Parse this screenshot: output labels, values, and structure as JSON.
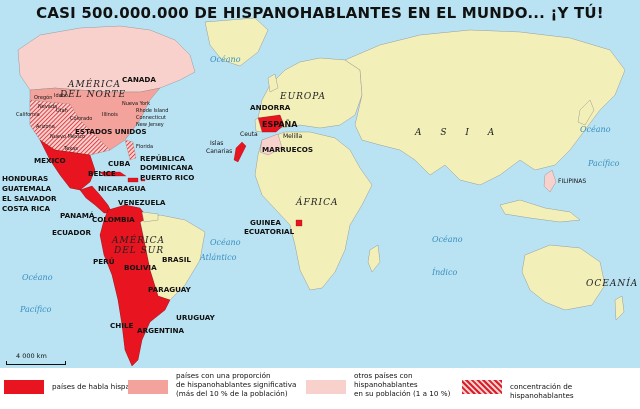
{
  "title": "CASI 500.000.000 DE HISPANOHABLANTES EN EL MUNDO... ¡Y TÚ!",
  "colors": {
    "ocean": "#b9e3f3",
    "land": "#f2efb9",
    "spanish": "#e8141f",
    "significant": "#f3a39b",
    "other": "#f8d1cc",
    "concentration": "#d91d2a"
  },
  "continents": {
    "north_america": "AMÉRICA DEL NORTE",
    "south_america": "AMÉRICA DEL SUR",
    "europe": "EUROPA",
    "africa": "ÁFRICA",
    "asia": "A S I A",
    "oceania": "OCEANÍA"
  },
  "oceans": {
    "atlantic": "Atlántico",
    "indian": "Índico",
    "pacific_right": "Pacífico",
    "ocean_word": "Océano",
    "pacific_left": "Pacífico"
  },
  "countries": {
    "canada": "CANADA",
    "usa": "ESTADOS UNIDOS",
    "mexico": "MEXICO",
    "cuba": "CUBA",
    "belice": "BELICE",
    "rep_dom": "REPÚBLICA\nDOMINICANA",
    "puerto_rico": "PUERTO RICO",
    "honduras": "HONDURAS",
    "guatemala": "GUATEMALA",
    "salvador": "EL SALVADOR",
    "costa_rica": "COSTA RICA",
    "nicaragua": "NICARAGUA",
    "panama": "PANAMÁ",
    "venezuela": "VENEZUELA",
    "colombia": "COLOMBIA",
    "ecuador": "ECUADOR",
    "peru": "PERÚ",
    "bolivia": "BOLIVIA",
    "brasil": "BRASIL",
    "paraguay": "PARAGUAY",
    "uruguay": "URUGUAY",
    "chile": "CHILE",
    "argentina": "ARGENTINA",
    "espana": "ESPAÑA",
    "andorra": "ANDORRA",
    "ceuta": "Ceuta",
    "melilla": "Melilla",
    "marruecos": "MARRUECOS",
    "canarias": "Islas\nCanarias",
    "guinea": "GUINEA\nECUATORIAL",
    "filipinas": "FILIPINAS"
  },
  "states": [
    "Oregón",
    "Idaho",
    "Nevada",
    "California",
    "Utah",
    "Arizona",
    "Nuevo México",
    "Colorado",
    "Texas",
    "Illinois",
    "Nueva York",
    "Rhode Island",
    "Connecticut",
    "New Jersey",
    "Florida"
  ],
  "scale": "4 000 km",
  "legend": [
    {
      "text": "países de habla hispana",
      "color": "#e8141f",
      "hatch": false
    },
    {
      "text": "países con una proporción\nde hispanohablantes significativa\n(más del 10 % de la población)",
      "color": "#f3a39b",
      "hatch": false
    },
    {
      "text": "otros países con\nhispanohablantes\nen su población (1 a 10 %)",
      "color": "#f8d1cc",
      "hatch": false
    },
    {
      "text": "concentración de hispanohablantes",
      "color": "#d91d2a",
      "hatch": true
    }
  ]
}
